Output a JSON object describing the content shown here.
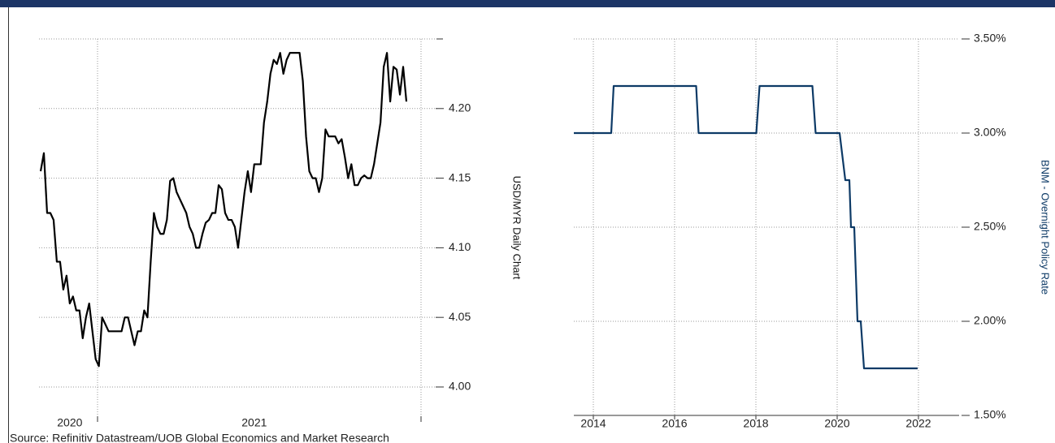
{
  "chart_data": [
    {
      "type": "line",
      "y_label": "USD/MYR Daily Chart",
      "categories": [
        null,
        null,
        null,
        null,
        null,
        null,
        null,
        null,
        null,
        "2020",
        null,
        null,
        null,
        null,
        null,
        null,
        null,
        null,
        null,
        null,
        null,
        null,
        null,
        null,
        null,
        null,
        null,
        null,
        null,
        null,
        null,
        null,
        null,
        null,
        null,
        null,
        null,
        null,
        null,
        null,
        null,
        null,
        null,
        null,
        null,
        null,
        null,
        null,
        null,
        null,
        null,
        null,
        null,
        null,
        null,
        null,
        null,
        null,
        null,
        null,
        null,
        null,
        null,
        null,
        null,
        null,
        "2021",
        null,
        null,
        null,
        null,
        null,
        null,
        null,
        null,
        null,
        null,
        null,
        null,
        null,
        null,
        null,
        null,
        null,
        null,
        null,
        null,
        null,
        null,
        null,
        null,
        null,
        null,
        null,
        null,
        null,
        null,
        null,
        null,
        null,
        null,
        null,
        null,
        null,
        null,
        null,
        null,
        null,
        null,
        null,
        null,
        null,
        null,
        null
      ],
      "series": [
        {
          "color": "#000000",
          "values": [
            4.155,
            4.168,
            4.125,
            4.125,
            4.12,
            4.09,
            4.09,
            4.07,
            4.08,
            4.06,
            4.065,
            4.055,
            4.055,
            4.035,
            4.05,
            4.06,
            4.04,
            4.02,
            4.015,
            4.05,
            4.045,
            4.04,
            4.04,
            4.04,
            4.04,
            4.04,
            4.05,
            4.05,
            4.04,
            4.03,
            4.04,
            4.04,
            4.055,
            4.05,
            4.09,
            4.125,
            4.115,
            4.11,
            4.11,
            4.12,
            4.148,
            4.15,
            4.14,
            4.135,
            4.13,
            4.125,
            4.115,
            4.11,
            4.1,
            4.1,
            4.11,
            4.118,
            4.12,
            4.125,
            4.125,
            4.145,
            4.142,
            4.125,
            4.12,
            4.12,
            4.115,
            4.1,
            4.12,
            4.14,
            4.155,
            4.14,
            4.16,
            4.16,
            4.16,
            4.19,
            4.205,
            4.225,
            4.235,
            4.232,
            4.24,
            4.225,
            4.235,
            4.24,
            4.24,
            4.24,
            4.24,
            4.22,
            4.18,
            4.155,
            4.15,
            4.15,
            4.14,
            4.15,
            4.185,
            4.18,
            4.18,
            4.18,
            4.175,
            4.178,
            4.165,
            4.15,
            4.16,
            4.145,
            4.145,
            4.15,
            4.152,
            4.15,
            4.15,
            4.16,
            4.175,
            4.19,
            4.23,
            4.24,
            4.205,
            4.23,
            4.228,
            4.21,
            4.23,
            4.205
          ]
        }
      ],
      "ylim": [
        3.979,
        4.25
      ],
      "yticks": [
        {
          "value": 4,
          "label": "4.00"
        },
        4.05,
        {
          "value": 4.1,
          "label": "4.10"
        },
        4.15,
        {
          "value": 4.2,
          "label": "4.20"
        }
      ],
      "grid": true
    },
    {
      "type": "line",
      "y_label": "BNM - Overnight Policy Rate",
      "x": [
        2013.52,
        2014.44,
        2014.5,
        2016.53,
        2016.59,
        2018.01,
        2018.09,
        2019.39,
        2019.47,
        2020.06,
        2020.2,
        2020.3,
        2020.34,
        2020.42,
        2020.5,
        2020.58,
        2020.66,
        2021.98
      ],
      "series": [
        {
          "color": "#0d3a66",
          "values": [
            3.0,
            3.0,
            3.25,
            3.25,
            3.0,
            3.0,
            3.25,
            3.25,
            3.0,
            3.0,
            2.75,
            2.75,
            2.5,
            2.5,
            2.0,
            2.0,
            1.75,
            1.75
          ]
        }
      ],
      "xlim": [
        2013.52,
        2023.0
      ],
      "xticks": [
        2014,
        2016,
        2018,
        2020,
        2022
      ],
      "ylim": [
        1.5,
        3.5
      ],
      "yticks": [
        {
          "value": 1.5,
          "label": "1.50%"
        },
        {
          "value": 2.0,
          "label": "2.00%"
        },
        {
          "value": 2.5,
          "label": "2.50%"
        },
        {
          "value": 3.0,
          "label": "3.00%"
        },
        {
          "value": 3.5,
          "label": "3.50%"
        }
      ],
      "grid": true
    }
  ],
  "source": "Source: Refinitiv Datastream/UOB Global Economics and Market Research"
}
